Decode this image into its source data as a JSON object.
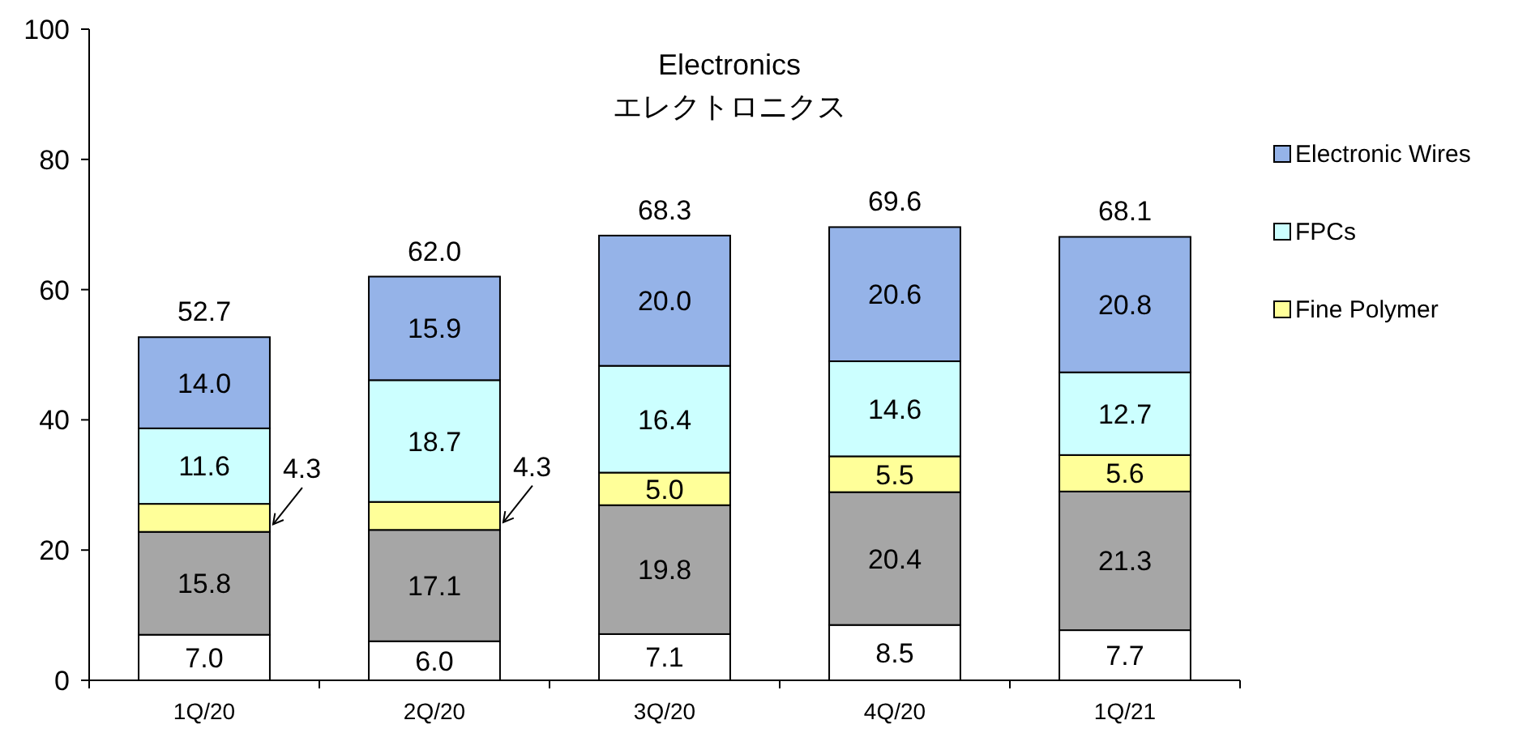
{
  "chart_data": {
    "type": "bar",
    "stacked": true,
    "title": "Electronics",
    "subtitle": "エレクトロニクス",
    "categories": [
      "1Q/20",
      "2Q/20",
      "3Q/20",
      "4Q/20",
      "1Q/21"
    ],
    "series": [
      {
        "color": "#ffffff",
        "values": [
          7.0,
          6.0,
          7.1,
          8.5,
          7.7
        ],
        "value_labels": [
          "7.0",
          "6.0",
          "7.1",
          "8.5",
          "7.7"
        ]
      },
      {
        "color": "#a6a6a6",
        "values": [
          15.8,
          17.1,
          19.8,
          20.4,
          21.3
        ],
        "value_labels": [
          "15.8",
          "17.1",
          "19.8",
          "20.4",
          "21.3"
        ]
      },
      {
        "name": "Fine Polymer",
        "color": "#ffff99",
        "values": [
          4.3,
          4.3,
          5.0,
          5.5,
          5.6
        ],
        "value_labels": [
          "4.3",
          "4.3",
          "5.0",
          "5.5",
          "5.6"
        ]
      },
      {
        "name": "FPCs",
        "color": "#ccffff",
        "values": [
          11.6,
          18.7,
          16.4,
          14.6,
          12.7
        ],
        "value_labels": [
          "11.6",
          "18.7",
          "16.4",
          "14.6",
          "12.7"
        ]
      },
      {
        "name": "Electronic Wires",
        "color": "#95b3e8",
        "values": [
          14.0,
          15.9,
          20.0,
          20.6,
          20.8
        ],
        "value_labels": [
          "14.0",
          "15.9",
          "20.0",
          "20.6",
          "20.8"
        ]
      }
    ],
    "totals": [
      "52.7",
      "62.0",
      "68.3",
      "69.6",
      "68.1"
    ],
    "ylim": [
      0,
      100
    ],
    "yticks": [
      0,
      20,
      40,
      60,
      80,
      100
    ],
    "legend": "right",
    "grid": false
  }
}
